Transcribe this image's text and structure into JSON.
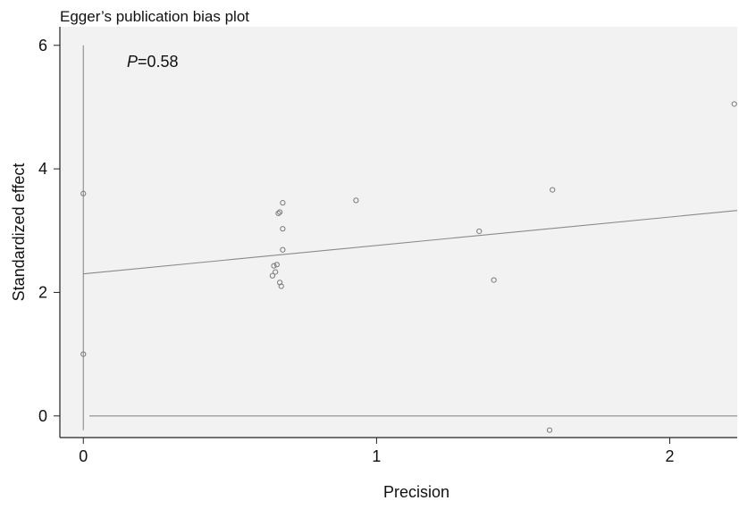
{
  "chart_data": {
    "type": "scatter",
    "title": "Egger’s publication bias plot",
    "annotation": {
      "prefix": "P",
      "text": "=0.58"
    },
    "xlabel": "Precision",
    "ylabel": "Standardized effect",
    "xlim": [
      -0.08,
      2.23
    ],
    "ylim": [
      -0.35,
      6.3
    ],
    "x_ticks": [
      0,
      1,
      2
    ],
    "y_ticks": [
      0,
      2,
      4,
      6
    ],
    "x_tick_labels": [
      "0",
      "1",
      "2"
    ],
    "y_tick_labels": [
      "0",
      "2",
      "4",
      "6"
    ],
    "grid": false,
    "points": [
      {
        "x": 0.0,
        "y": 3.6
      },
      {
        "x": 0.0,
        "y": 1.0
      },
      {
        "x": 0.68,
        "y": 3.45
      },
      {
        "x": 0.67,
        "y": 3.3
      },
      {
        "x": 0.665,
        "y": 3.28
      },
      {
        "x": 0.68,
        "y": 3.03
      },
      {
        "x": 0.68,
        "y": 2.69
      },
      {
        "x": 0.66,
        "y": 2.45
      },
      {
        "x": 0.65,
        "y": 2.43
      },
      {
        "x": 0.655,
        "y": 2.33
      },
      {
        "x": 0.645,
        "y": 2.27
      },
      {
        "x": 0.67,
        "y": 2.16
      },
      {
        "x": 0.675,
        "y": 2.1
      },
      {
        "x": 0.93,
        "y": 3.49
      },
      {
        "x": 1.35,
        "y": 2.99
      },
      {
        "x": 1.4,
        "y": 2.2
      },
      {
        "x": 1.6,
        "y": 3.66
      },
      {
        "x": 1.59,
        "y": -0.23
      },
      {
        "x": 2.22,
        "y": 5.05
      }
    ],
    "regression_line": {
      "intercept": 2.3,
      "slope": 0.46
    },
    "ci_segment": {
      "x": 0.0,
      "y_from": -0.23,
      "y_to": 6.0
    },
    "reference_line_y": 0,
    "colors": {
      "plot_background": "#f2f2f2",
      "marker": "#7a7a7a",
      "line": "#8a8a8a",
      "axis": "#222222"
    }
  }
}
